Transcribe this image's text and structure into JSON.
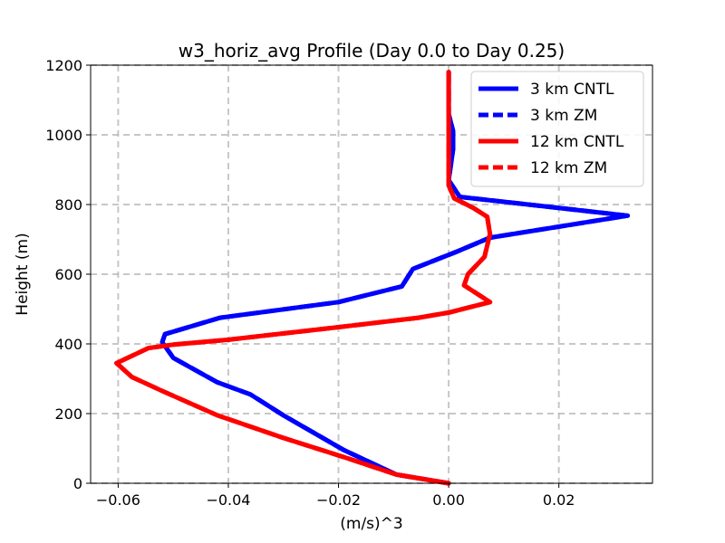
{
  "chart_data": {
    "type": "line",
    "title": "w3_horiz_avg Profile (Day 0.0 to Day 0.25)",
    "xlabel": "(m/s)^3",
    "ylabel": "Height (m)",
    "xlim": [
      -0.065,
      0.037
    ],
    "ylim": [
      0,
      1200
    ],
    "grid": true,
    "legend_position": "top-right",
    "xticks": [
      -0.06,
      -0.04,
      -0.02,
      0.0,
      0.02
    ],
    "xtick_labels": [
      "−0.06",
      "−0.04",
      "−0.02",
      "0.00",
      "0.02"
    ],
    "yticks": [
      0,
      200,
      400,
      600,
      800,
      1000,
      1200
    ],
    "ytick_labels": [
      "0",
      "200",
      "400",
      "600",
      "800",
      "1000",
      "1200"
    ],
    "series": [
      {
        "name": "3 km CNTL",
        "color": "#0000ff",
        "style": "solid",
        "points": [
          [
            0.0,
            0
          ],
          [
            -0.0095,
            25
          ],
          [
            -0.019,
            95
          ],
          [
            -0.03,
            195
          ],
          [
            -0.036,
            255
          ],
          [
            -0.042,
            290
          ],
          [
            -0.05,
            360
          ],
          [
            -0.052,
            405
          ],
          [
            -0.0515,
            428
          ],
          [
            -0.0415,
            475
          ],
          [
            -0.02,
            520
          ],
          [
            -0.0085,
            565
          ],
          [
            -0.0065,
            615
          ],
          [
            0.0015,
            665
          ],
          [
            0.0075,
            705
          ],
          [
            0.0325,
            768
          ],
          [
            0.002,
            822
          ],
          [
            0.0,
            870
          ],
          [
            0.0008,
            960
          ],
          [
            0.0008,
            1010
          ],
          [
            0.0,
            1060
          ],
          [
            0.0,
            1180
          ]
        ]
      },
      {
        "name": "3 km ZM",
        "color": "#0000ff",
        "style": "dashed",
        "points": [
          [
            0.0,
            0
          ],
          [
            -0.0095,
            25
          ],
          [
            -0.019,
            95
          ],
          [
            -0.03,
            195
          ],
          [
            -0.036,
            255
          ],
          [
            -0.042,
            290
          ],
          [
            -0.05,
            360
          ],
          [
            -0.052,
            405
          ],
          [
            -0.0515,
            428
          ],
          [
            -0.0415,
            475
          ],
          [
            -0.02,
            520
          ],
          [
            -0.0085,
            565
          ],
          [
            -0.0065,
            615
          ],
          [
            0.0015,
            665
          ],
          [
            0.0075,
            705
          ],
          [
            0.0325,
            768
          ],
          [
            0.002,
            822
          ],
          [
            0.0,
            870
          ],
          [
            0.0008,
            960
          ],
          [
            0.0008,
            1010
          ],
          [
            0.0,
            1060
          ],
          [
            0.0,
            1180
          ]
        ]
      },
      {
        "name": "12 km CNTL",
        "color": "#ff0000",
        "style": "solid",
        "points": [
          [
            0.0,
            0
          ],
          [
            -0.0095,
            25
          ],
          [
            -0.018,
            70
          ],
          [
            -0.03,
            130
          ],
          [
            -0.042,
            195
          ],
          [
            -0.052,
            265
          ],
          [
            -0.0575,
            305
          ],
          [
            -0.0603,
            345
          ],
          [
            -0.0545,
            388
          ],
          [
            -0.05,
            398
          ],
          [
            -0.04,
            412
          ],
          [
            -0.02,
            448
          ],
          [
            -0.0055,
            475
          ],
          [
            0.0,
            490
          ],
          [
            0.0075,
            520
          ],
          [
            0.0028,
            568
          ],
          [
            0.0035,
            600
          ],
          [
            0.005,
            625
          ],
          [
            0.0065,
            650
          ],
          [
            0.0075,
            715
          ],
          [
            0.007,
            765
          ],
          [
            0.0045,
            790
          ],
          [
            0.001,
            818
          ],
          [
            0.0,
            855
          ],
          [
            0.0,
            1180
          ]
        ]
      },
      {
        "name": "12 km ZM",
        "color": "#ff0000",
        "style": "dashed",
        "points": [
          [
            0.0,
            0
          ],
          [
            -0.0095,
            25
          ],
          [
            -0.018,
            70
          ],
          [
            -0.03,
            130
          ],
          [
            -0.042,
            195
          ],
          [
            -0.052,
            265
          ],
          [
            -0.0575,
            305
          ],
          [
            -0.0603,
            345
          ],
          [
            -0.0545,
            388
          ],
          [
            -0.05,
            398
          ],
          [
            -0.04,
            412
          ],
          [
            -0.02,
            448
          ],
          [
            -0.0055,
            475
          ],
          [
            0.0,
            490
          ],
          [
            0.0075,
            520
          ],
          [
            0.0028,
            568
          ],
          [
            0.0035,
            600
          ],
          [
            0.005,
            625
          ],
          [
            0.0065,
            650
          ],
          [
            0.0075,
            715
          ],
          [
            0.007,
            765
          ],
          [
            0.0045,
            790
          ],
          [
            0.001,
            818
          ],
          [
            0.0,
            855
          ],
          [
            0.0,
            1180
          ]
        ]
      }
    ]
  }
}
